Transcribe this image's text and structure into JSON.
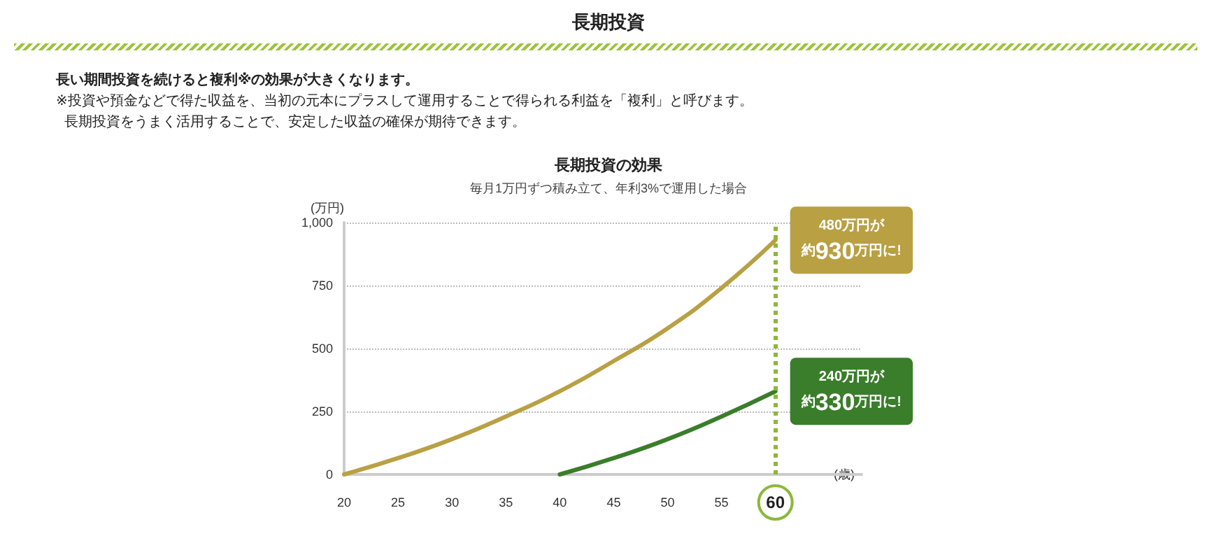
{
  "chart_data": {
    "type": "line",
    "title": "長期投資の効果",
    "subtitle": "毎月1万円ずつ積み立て、年利3%で運用した場合",
    "xlabel": "(歳)",
    "ylabel": "(万円)",
    "xlim": [
      20,
      68
    ],
    "xticks": [
      20,
      25,
      30,
      35,
      40,
      45,
      50,
      55,
      60
    ],
    "ylim": [
      0,
      1000
    ],
    "yticks": [
      0,
      250,
      500,
      750,
      {
        "value": 1000,
        "label": "1,000"
      }
    ],
    "grid": "y",
    "marker": "none",
    "line_style": "solid",
    "series": [
      {
        "color": "#b9a043",
        "x": [
          20,
          25,
          30,
          35,
          40,
          45,
          50,
          55,
          60
        ],
        "values": [
          0,
          65,
          140,
          230,
          330,
          450,
          580,
          740,
          930
        ]
      },
      {
        "color": "#3a7d2a",
        "x": [
          40,
          45,
          50,
          55,
          60
        ],
        "values": [
          0,
          65,
          140,
          230,
          330
        ]
      }
    ],
    "ref_lines": [
      {
        "axis": "x",
        "value": 60,
        "color": "#8cb83a",
        "line_style": "dotted"
      }
    ],
    "annotations": [
      "長期投資",
      "長い期間投資を続けると複利※の効果が大きくなります。",
      "※投資や預金などで得た収益を、当初の元本にプラスして運用することで得られる利益を「複利」と呼びます。",
      "長期投資をうまく活用することで、安定した収益の確保が期待できます。",
      {
        "text": "480万円が約930万円に!",
        "x": 60,
        "y": 930
      },
      {
        "text": "240万円が約330万円に!",
        "x": 60,
        "y": 330
      }
    ]
  }
}
